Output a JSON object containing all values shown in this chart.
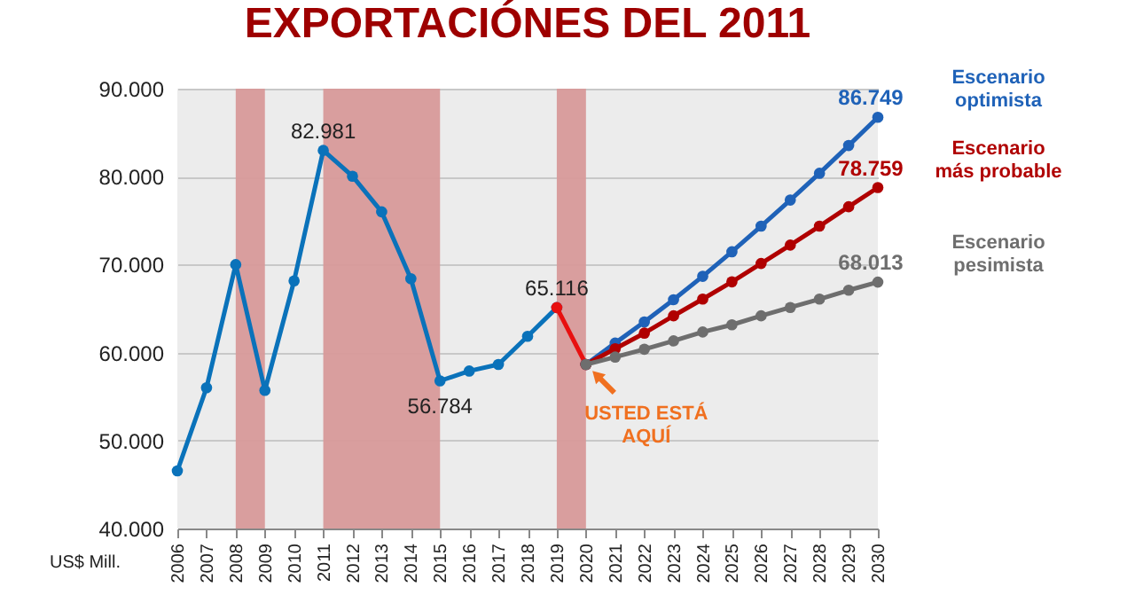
{
  "chart_data": {
    "type": "line",
    "title": "EXPORTACIÓNES DEL 2011",
    "ylabel": "US$ Mill.",
    "xlim": [
      2006,
      2030
    ],
    "xticks": [
      2006,
      2007,
      2008,
      2009,
      2010,
      2011,
      2012,
      2013,
      2014,
      2015,
      2016,
      2017,
      2018,
      2019,
      2020,
      2021,
      2022,
      2023,
      2024,
      2025,
      2026,
      2027,
      2028,
      2029,
      2030
    ],
    "ylim": [
      40000,
      90000
    ],
    "yticks": [
      {
        "value": 40000,
        "label": "40.000"
      },
      {
        "value": 50000,
        "label": "50.000"
      },
      {
        "value": 60000,
        "label": "60.000"
      },
      {
        "value": 70000,
        "label": "70.000"
      },
      {
        "value": 80000,
        "label": "80.000"
      },
      {
        "value": 90000,
        "label": "90.000"
      }
    ],
    "grid": "y",
    "marker": "circle",
    "line_style": "solid",
    "legend": false,
    "series": [
      {
        "color": "#0a72ba",
        "x": [
          2006,
          2007,
          2008,
          2009,
          2010,
          2011,
          2012,
          2013,
          2014,
          2015,
          2016,
          2017,
          2018,
          2019
        ],
        "values": [
          46550,
          56000,
          70000,
          55700,
          68150,
          82981,
          80050,
          76000,
          68400,
          56784,
          57900,
          58650,
          61850,
          65116
        ],
        "value_labels": [
          null,
          null,
          null,
          null,
          null,
          "82.981",
          null,
          null,
          null,
          "56.784",
          null,
          null,
          null,
          "65.116"
        ]
      },
      {
        "color": "#e81010",
        "x": [
          2019,
          2020
        ],
        "values": [
          65116,
          58650
        ]
      },
      {
        "name": "Escenario optimista",
        "color": "#1f62b8",
        "x": [
          2020,
          2021,
          2022,
          2023,
          2024,
          2025,
          2026,
          2027,
          2028,
          2029,
          2030
        ],
        "values": [
          58650,
          61080,
          63480,
          66010,
          68670,
          71460,
          74370,
          77340,
          80380,
          83540,
          86749
        ],
        "value_labels": [
          null,
          null,
          null,
          null,
          null,
          null,
          null,
          null,
          null,
          null,
          "86.749"
        ]
      },
      {
        "name": "Escenario más probable",
        "color": "#b00000",
        "x": [
          2020,
          2021,
          2022,
          2023,
          2024,
          2025,
          2026,
          2027,
          2028,
          2029,
          2030
        ],
        "values": [
          58650,
          60440,
          62210,
          64180,
          66080,
          68040,
          70130,
          72220,
          74370,
          76580,
          78759
        ],
        "value_labels": [
          null,
          null,
          null,
          null,
          null,
          null,
          null,
          null,
          null,
          null,
          "78.759"
        ]
      },
      {
        "name": "Escenario pesimista",
        "color": "#6e6e6e",
        "x": [
          2020,
          2021,
          2022,
          2023,
          2024,
          2025,
          2026,
          2027,
          2028,
          2029,
          2030
        ],
        "values": [
          58650,
          59490,
          60380,
          61330,
          62340,
          63160,
          64180,
          65130,
          66080,
          67090,
          68013
        ],
        "value_labels": [
          null,
          null,
          null,
          null,
          null,
          null,
          null,
          null,
          null,
          null,
          "68.013"
        ]
      }
    ],
    "bands": [
      {
        "axis": "x",
        "from": 2008,
        "to": 2009,
        "color": "#d89a9a"
      },
      {
        "axis": "x",
        "from": 2011,
        "to": 2015,
        "color": "#d89a9a"
      },
      {
        "axis": "x",
        "from": 2019,
        "to": 2020,
        "color": "#d89a9a"
      }
    ],
    "annotations": [
      {
        "text": "USTED ESTÁ AQUÍ",
        "x": 2020,
        "y": 58650
      }
    ]
  }
}
